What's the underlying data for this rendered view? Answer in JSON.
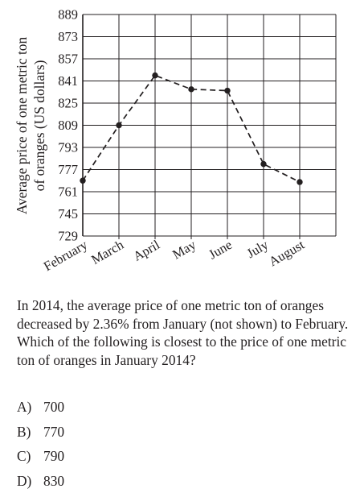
{
  "chart_data": {
    "type": "line",
    "categories": [
      "February",
      "March",
      "April",
      "May",
      "June",
      "July",
      "August"
    ],
    "values": [
      769,
      809,
      845,
      835,
      834,
      781,
      768
    ],
    "ylabel": "Average price of one metric ton of oranges (US dollars)",
    "ylabel_lines": [
      "Average price of one metric ton",
      "of oranges (US dollars)"
    ],
    "yticks": [
      729,
      745,
      761,
      777,
      793,
      809,
      825,
      841,
      857,
      873,
      889
    ],
    "ylim": [
      729,
      889
    ],
    "line_style": "dashed",
    "markers": "filled circles",
    "grid": true,
    "line_color": "#231f20"
  },
  "question": {
    "text": "In 2014, the average price of one metric ton of oranges decreased by 2.36% from January (not shown) to February. Which of the following is closest to the price of one metric ton of oranges in January 2014?"
  },
  "choices": [
    {
      "letter": "A)",
      "value": "700"
    },
    {
      "letter": "B)",
      "value": "770"
    },
    {
      "letter": "C)",
      "value": "790"
    },
    {
      "letter": "D)",
      "value": "830"
    }
  ]
}
